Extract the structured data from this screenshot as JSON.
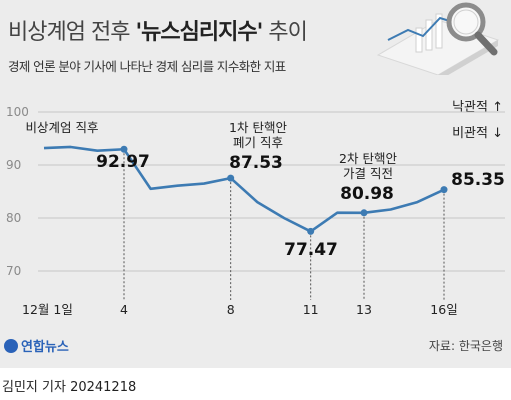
{
  "header": {
    "title_prefix": "비상계엄 전후 ",
    "title_bold": "'뉴스심리지수'",
    "title_suffix": " 추이",
    "subtitle": "경제 언론 분야 기사에 나타난 경제 심리를 지수화한 지표"
  },
  "legend": {
    "positive": "낙관적 ↑",
    "negative": "비관적 ↓"
  },
  "source": "자료: 한국은행",
  "logo": "연합뉴스",
  "footer": {
    "reporter": "김민지 기자",
    "date": "20241218"
  },
  "icon": "magnifier-chart-icon",
  "colors": {
    "line": "#3d7bb3",
    "background": "#ececec"
  },
  "chart_data": {
    "type": "line",
    "title": "비상계엄 전후 '뉴스심리지수' 추이",
    "xlabel": "",
    "ylabel": "",
    "ylim": [
      65,
      100
    ],
    "yticks": [
      100,
      90,
      80,
      70
    ],
    "grid": "horizontal",
    "x": [
      1,
      2,
      3,
      4,
      5,
      6,
      7,
      8,
      9,
      10,
      11,
      12,
      13,
      14,
      15,
      16
    ],
    "xtick_labels": [
      {
        "x": 1,
        "label": "12월 1일"
      },
      {
        "x": 4,
        "label": "4"
      },
      {
        "x": 8,
        "label": "8"
      },
      {
        "x": 11,
        "label": "11"
      },
      {
        "x": 13,
        "label": "13"
      },
      {
        "x": 16,
        "label": "16일"
      }
    ],
    "series": [
      {
        "values": [
          93.2,
          93.4,
          92.7,
          92.97,
          85.5,
          86.1,
          86.5,
          87.53,
          83.0,
          80.0,
          77.47,
          81.0,
          80.98,
          81.6,
          83.0,
          85.35
        ]
      }
    ],
    "annotations": [
      {
        "x": 4,
        "label": "비상계엄 직후",
        "value": "92.97"
      },
      {
        "x": 8,
        "label": "1차 탄핵안\n폐기 직후",
        "value": "87.53"
      },
      {
        "x": 11,
        "label": "",
        "value": "77.47"
      },
      {
        "x": 13,
        "label": "2차 탄핵안\n가결 직전",
        "value": "80.98"
      },
      {
        "x": 16,
        "label": "",
        "value": "85.35"
      }
    ]
  }
}
